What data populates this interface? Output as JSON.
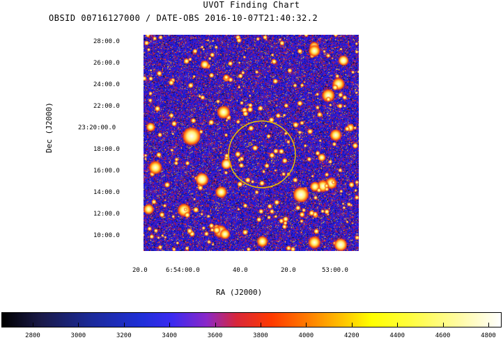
{
  "title": "UVOT Finding Chart",
  "subtitle": "OBSID 00716127000 / DATE-OBS 2016-10-07T21:40:32.2",
  "axes": {
    "xlabel": "RA (J2000)",
    "ylabel": "Dec (J2000)",
    "yticks": [
      "28:00.0",
      "26:00.0",
      "24:00.0",
      "22:00.0",
      "23:20:00.0",
      "18:00.0",
      "16:00.0",
      "14:00.0",
      "12:00.0",
      "10:00.0"
    ],
    "xticks": [
      "20.0",
      "6:54:00.0",
      "40.0",
      "20.0",
      "53:00.0"
    ]
  },
  "colorbar": {
    "ticks": [
      "2800",
      "3000",
      "3200",
      "3400",
      "3600",
      "3800",
      "4000",
      "4200",
      "4400",
      "4600",
      "4800"
    ]
  },
  "colors": {
    "background": "#1a1bd6",
    "circle": "#e8c000"
  }
}
